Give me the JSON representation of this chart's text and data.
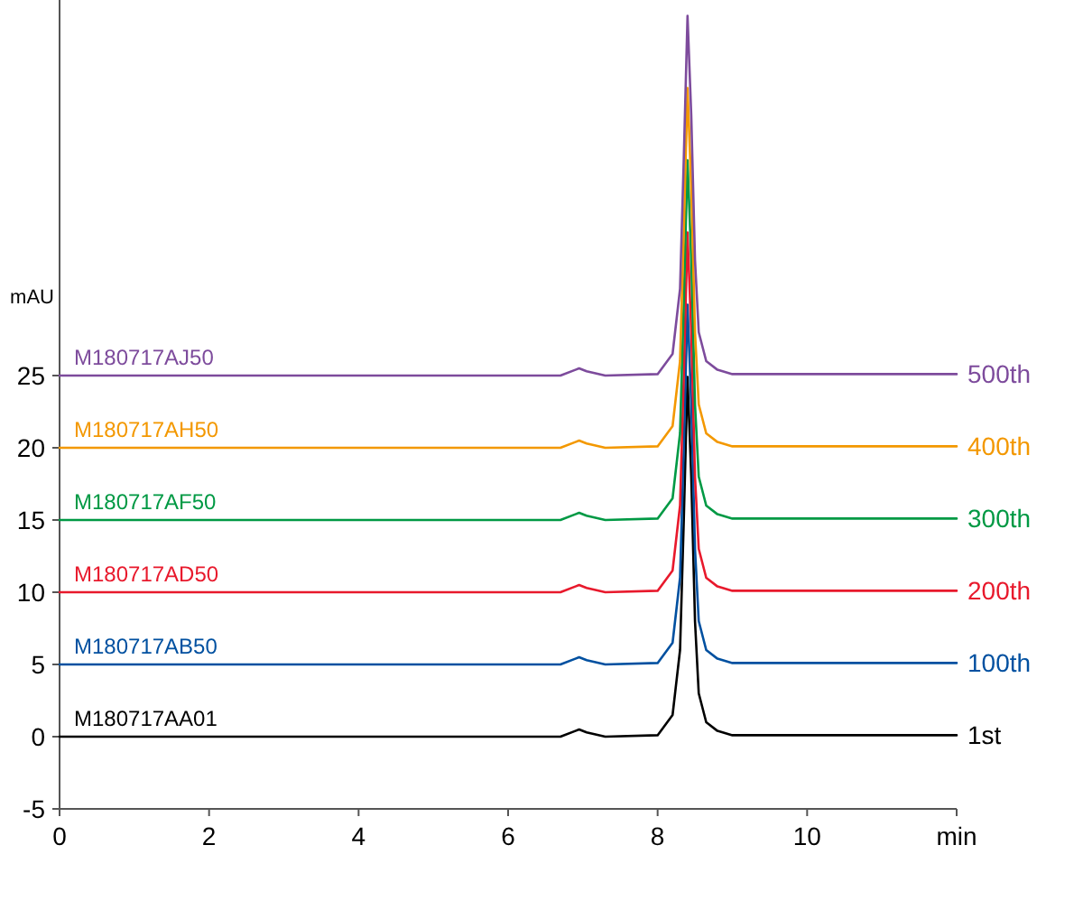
{
  "chart_data": {
    "type": "line",
    "ylabel": "mAU",
    "x": [
      0,
      6.7,
      6.9,
      6.95,
      7.05,
      7.3,
      8.0,
      8.2,
      8.3,
      8.35,
      8.4,
      8.45,
      8.5,
      8.55,
      8.65,
      8.8,
      9.0,
      12
    ],
    "xlim": [
      0,
      12
    ],
    "xticks": [
      0,
      2,
      4,
      6,
      8,
      10,
      {
        "value": 12,
        "label": "min"
      }
    ],
    "ylim": [
      -5,
      51
    ],
    "yticks": [
      -5,
      0,
      5,
      10,
      15,
      20,
      25
    ],
    "series": [
      {
        "name": "1st",
        "color": "#000000",
        "values": [
          0,
          0,
          0.4,
          0.5,
          0.3,
          0,
          0.1,
          1.5,
          6,
          15,
          24.9,
          18,
          8,
          3,
          1,
          0.4,
          0.1,
          0.1
        ]
      },
      {
        "name": "100th",
        "color": "#0050a0",
        "values": [
          5,
          5,
          5.4,
          5.5,
          5.3,
          5,
          5.1,
          6.5,
          11,
          20,
          29.9,
          23,
          13,
          8,
          6,
          5.4,
          5.1,
          5.1
        ]
      },
      {
        "name": "200th",
        "color": "#e8192c",
        "values": [
          10,
          10,
          10.4,
          10.5,
          10.3,
          10,
          10.1,
          11.5,
          16,
          25,
          34.9,
          28,
          18,
          13,
          11,
          10.4,
          10.1,
          10.1
        ]
      },
      {
        "name": "300th",
        "color": "#009944",
        "values": [
          15,
          15,
          15.4,
          15.5,
          15.3,
          15,
          15.1,
          16.5,
          21,
          30,
          39.9,
          33,
          23,
          18,
          16,
          15.4,
          15.1,
          15.1
        ]
      },
      {
        "name": "400th",
        "color": "#f39800",
        "values": [
          20,
          20,
          20.4,
          20.5,
          20.3,
          20,
          20.1,
          21.5,
          26,
          35,
          44.9,
          38,
          28,
          23,
          21,
          20.4,
          20.1,
          20.1
        ]
      },
      {
        "name": "500th",
        "color": "#7d4b9c",
        "values": [
          25,
          25,
          25.4,
          25.5,
          25.3,
          25,
          25.1,
          26.5,
          31,
          40,
          49.9,
          43,
          33,
          28,
          26,
          25.4,
          25.1,
          25.1
        ]
      }
    ],
    "annotations": [
      "M180717AA01",
      "M180717AB50",
      "M180717AD50",
      "M180717AF50",
      "M180717AH50",
      "M180717AJ50"
    ]
  }
}
